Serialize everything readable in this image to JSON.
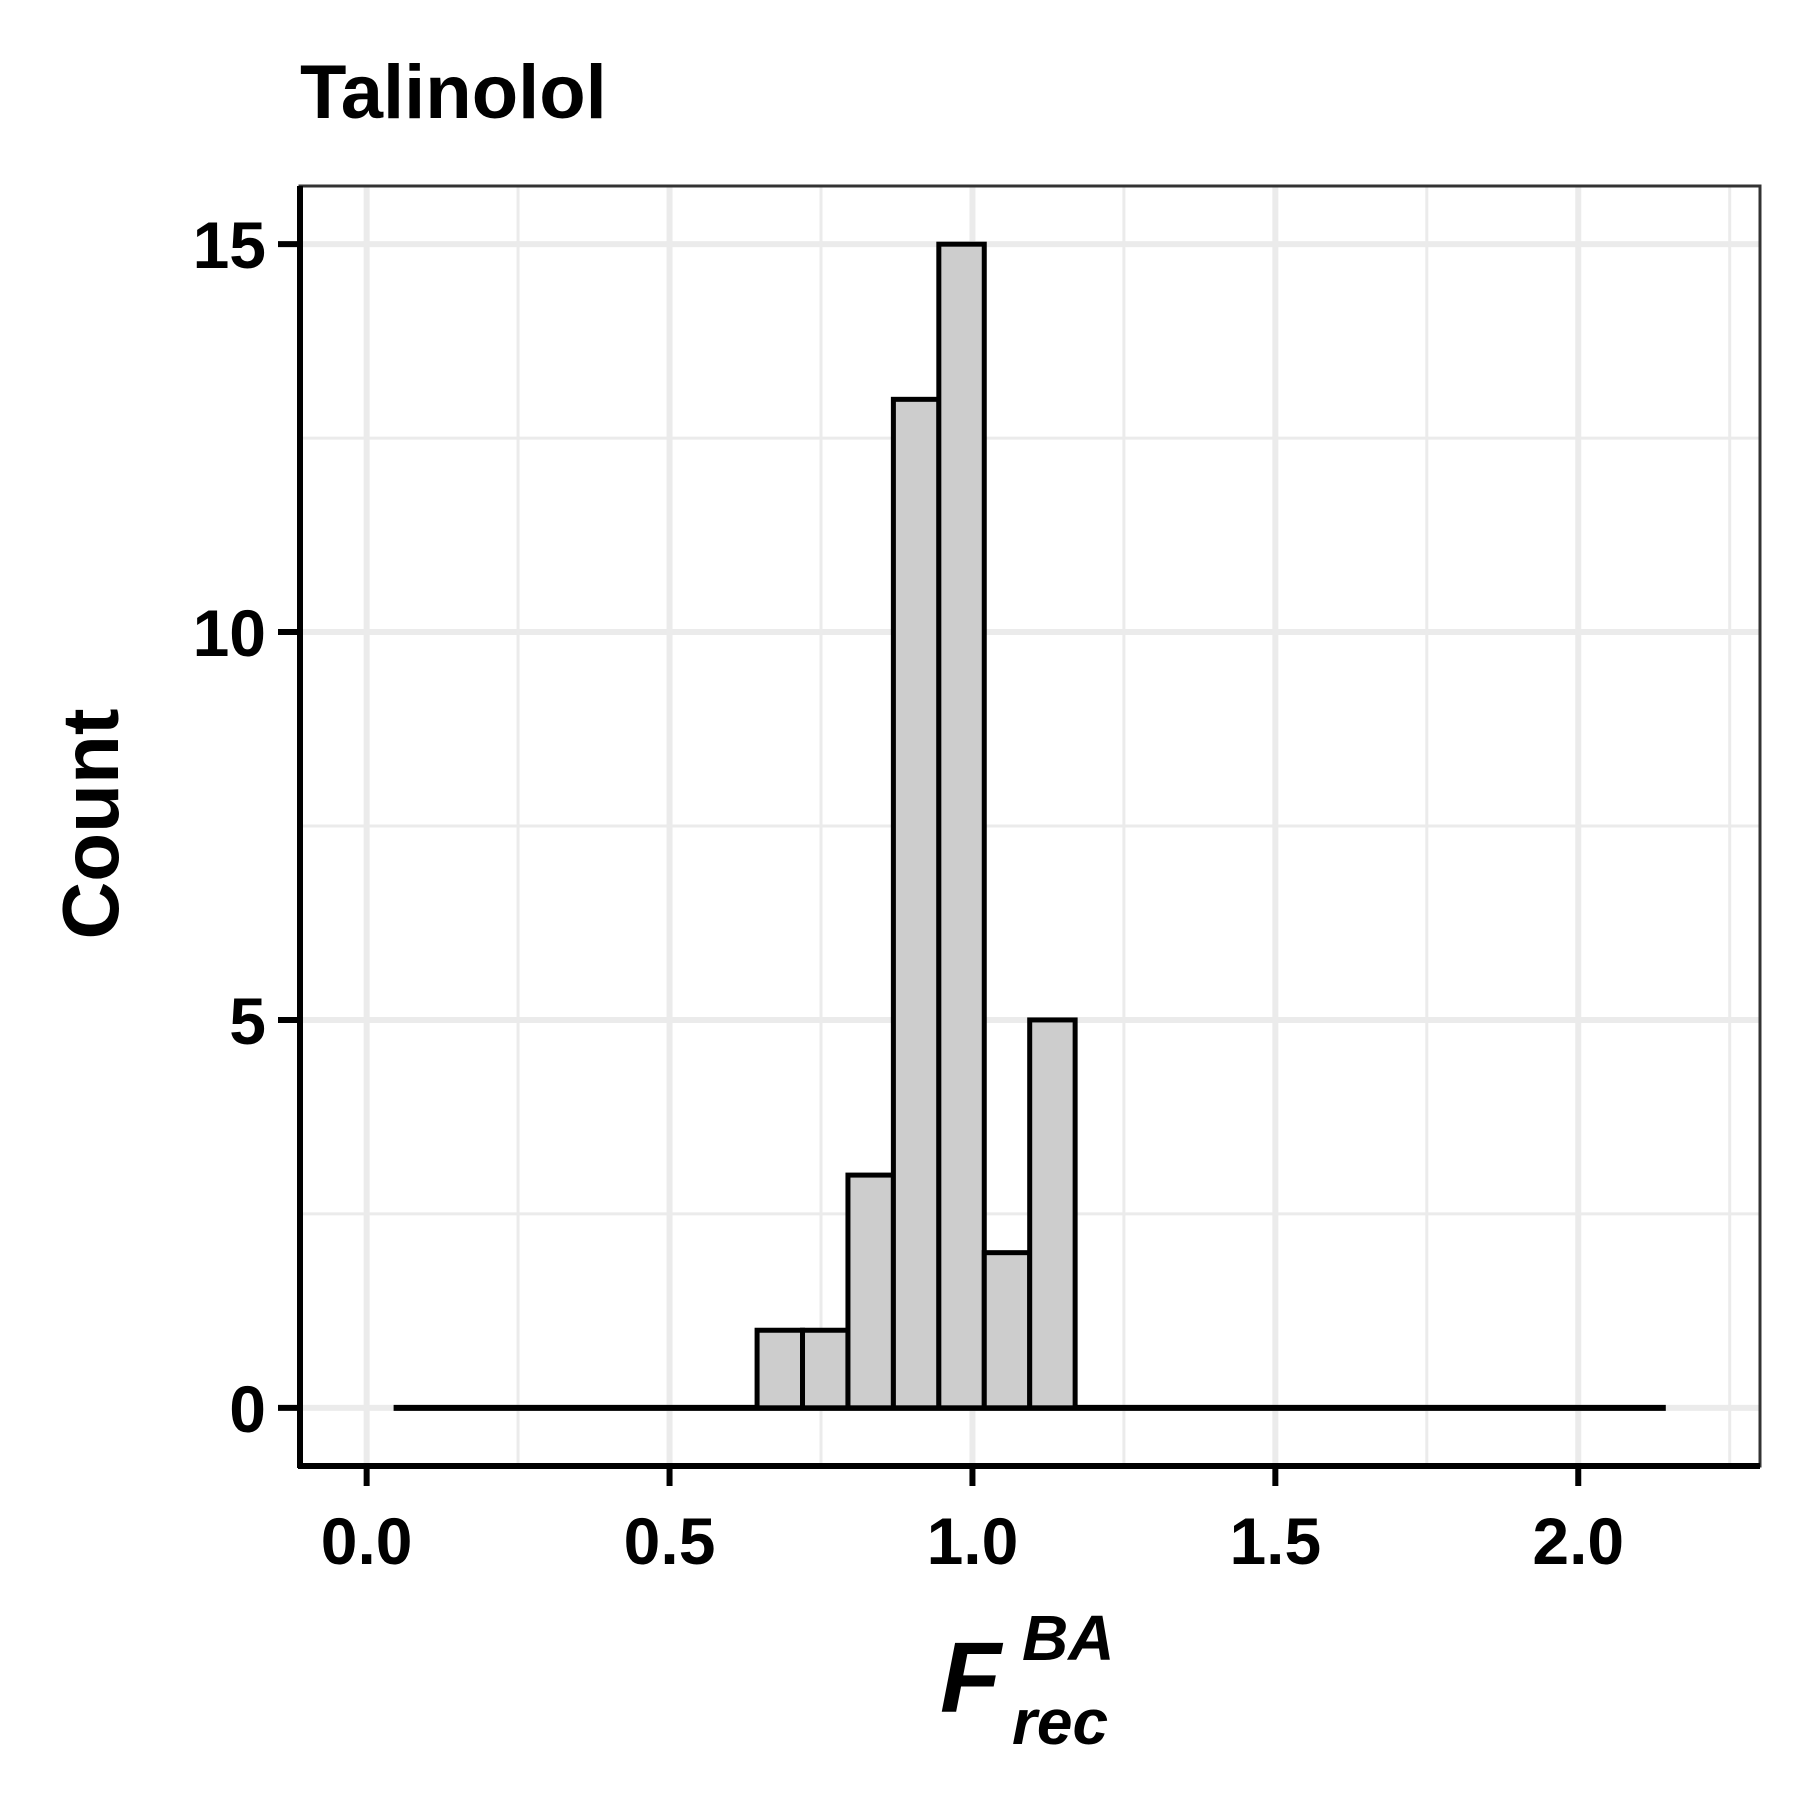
{
  "chart_data": {
    "type": "bar",
    "title": "Talinolol",
    "xlabel": {
      "base": "F",
      "superscript": "BA",
      "subscript": "rec"
    },
    "ylabel": "Count",
    "xlim": [
      -0.11,
      2.3
    ],
    "ylim": [
      -0.75,
      15.75
    ],
    "x_ticks": [
      {
        "value": 0.0,
        "label": "0.0"
      },
      {
        "value": 0.5,
        "label": "0.5"
      },
      {
        "value": 1.0,
        "label": "1.0"
      },
      {
        "value": 1.5,
        "label": "1.5"
      },
      {
        "value": 2.0,
        "label": "2.0"
      }
    ],
    "y_ticks": [
      {
        "value": 0,
        "label": "0"
      },
      {
        "value": 5,
        "label": "5"
      },
      {
        "value": 10,
        "label": "10"
      },
      {
        "value": 15,
        "label": "15"
      }
    ],
    "x_minor_grid": [
      0.25,
      0.75,
      1.25,
      1.75,
      2.25
    ],
    "y_minor_grid": [
      2.5,
      7.5,
      12.5
    ],
    "grid": true,
    "legend": false,
    "bin_width": 0.075,
    "bins_x_start": 0.0445,
    "bins_x_end": 2.1445,
    "bins": [
      {
        "x0": 0.6445,
        "x1": 0.7195,
        "count": 1
      },
      {
        "x0": 0.7195,
        "x1": 0.7945,
        "count": 1
      },
      {
        "x0": 0.7945,
        "x1": 0.8695,
        "count": 3
      },
      {
        "x0": 0.8695,
        "x1": 0.9445,
        "count": 13
      },
      {
        "x0": 0.9445,
        "x1": 1.0195,
        "count": 15
      },
      {
        "x0": 1.0195,
        "x1": 1.0945,
        "count": 2
      },
      {
        "x0": 1.0945,
        "x1": 1.1695,
        "count": 5
      }
    ],
    "colors": {
      "bar_fill": "#cdcdcd",
      "bar_stroke": "#000000",
      "grid": "#ebebeb"
    }
  }
}
